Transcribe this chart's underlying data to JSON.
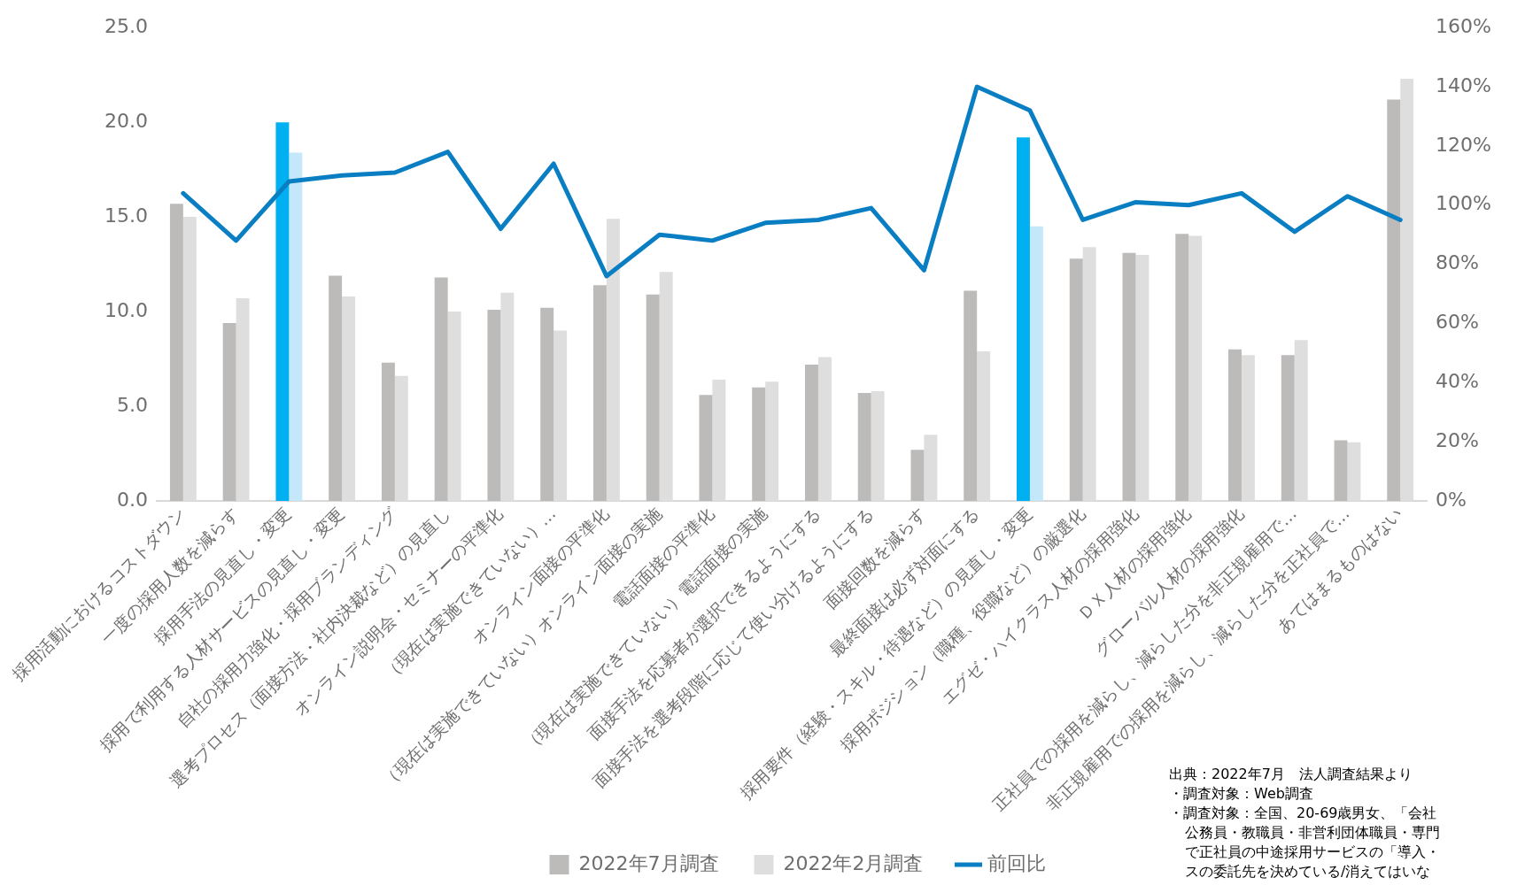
{
  "chart_data": {
    "type": "bar",
    "categories": [
      "採用活動におけるコストダウン",
      "一度の採用人数を減らす",
      "採用手法の見直し・変更",
      "採用で利用する人材サービスの見直し・変更",
      "自社の採用力強化・採用ブランディング",
      "選考プロセス（面接方法・社内決裁など）の見直し",
      "オンライン説明会・セミナーの平準化",
      "（現在は実施できていない）…",
      "オンライン面接の平準化",
      "（現在は実施できていない）オンライン面接の実施",
      "電話面接の平準化",
      "（現在は実施できていない）電話面接の実施",
      "面接手法を応募者が選択できるようにする",
      "面接手法を選考段階に応じて使い分けるようにする",
      "面接回数を減らす",
      "最終面接は必ず対面にする",
      "採用要件（経験・スキル・待遇など）の見直し・変更",
      "採用ポジション（職種、役職など）の厳選化",
      "エグゼ・ハイクラス人材の採用強化",
      "ＤＸ人材の採用強化",
      "グローバル人材の採用強化",
      "正社員での採用を減らし、減らした分を非正規雇用で…",
      "非正規雇用での採用を減らし、減らした分を正社員で…",
      "あてはまるものはない"
    ],
    "series": [
      {
        "name": "2022年7月調査",
        "color": "#bcbbba",
        "colors": [
          "#bcbbba",
          "#bcbbba",
          "#00b0f0",
          "#bcbbba",
          "#bcbbba",
          "#bcbbba",
          "#bcbbba",
          "#bcbbba",
          "#bcbbba",
          "#bcbbba",
          "#bcbbba",
          "#bcbbba",
          "#bcbbba",
          "#bcbbba",
          "#bcbbba",
          "#bcbbba",
          "#00b0f0",
          "#bcbbba",
          "#bcbbba",
          "#bcbbba",
          "#bcbbba",
          "#bcbbba",
          "#bcbbba",
          "#bcbbba"
        ],
        "values": [
          15.7,
          9.4,
          20.0,
          11.9,
          7.3,
          11.8,
          10.1,
          10.2,
          11.4,
          10.9,
          5.6,
          6.0,
          7.2,
          5.7,
          2.7,
          11.1,
          19.2,
          12.8,
          13.1,
          14.1,
          8.0,
          7.7,
          3.2,
          21.2
        ]
      },
      {
        "name": "2022年2月調査",
        "color": "#dedede",
        "colors": [
          "#dedede",
          "#dedede",
          "#c4e8fa",
          "#dedede",
          "#dedede",
          "#dedede",
          "#dedede",
          "#dedede",
          "#dedede",
          "#dedede",
          "#dedede",
          "#dedede",
          "#dedede",
          "#dedede",
          "#dedede",
          "#dedede",
          "#c4e8fa",
          "#dedede",
          "#dedede",
          "#dedede",
          "#dedede",
          "#dedede",
          "#dedede",
          "#dedede"
        ],
        "values": [
          15.0,
          10.7,
          18.4,
          10.8,
          6.6,
          10.0,
          11.0,
          9.0,
          14.9,
          12.1,
          6.4,
          6.3,
          7.6,
          5.8,
          3.5,
          7.9,
          14.5,
          13.4,
          13.0,
          14.0,
          7.7,
          8.5,
          3.1,
          22.3
        ]
      },
      {
        "name": "前回比",
        "type": "line",
        "axis": "y2",
        "color": "#0a7ec2",
        "values": [
          104,
          88,
          108,
          110,
          111,
          118,
          92,
          114,
          76,
          90,
          88,
          94,
          95,
          99,
          78,
          140,
          132,
          95,
          101,
          100,
          104,
          91,
          103,
          95
        ]
      }
    ],
    "ylim": [
      0,
      25
    ],
    "yticks": [
      {
        "value": 0,
        "label": "0.0"
      },
      {
        "value": 5,
        "label": "5.0"
      },
      {
        "value": 10,
        "label": "10.0"
      },
      {
        "value": 15,
        "label": "15.0"
      },
      {
        "value": 20,
        "label": "20.0"
      },
      {
        "value": 25,
        "label": "25.0"
      }
    ],
    "y2lim": [
      0,
      160
    ],
    "y2ticks": [
      {
        "value": 0,
        "label": "0%"
      },
      {
        "value": 20,
        "label": "20%"
      },
      {
        "value": 40,
        "label": "40%"
      },
      {
        "value": 60,
        "label": "60%"
      },
      {
        "value": 80,
        "label": "80%"
      },
      {
        "value": 100,
        "label": "100%"
      },
      {
        "value": 120,
        "label": "120%"
      },
      {
        "value": 140,
        "label": "140%"
      },
      {
        "value": 160,
        "label": "160%"
      }
    ],
    "grid": false,
    "legend": "bottom",
    "marker": "none",
    "line_style": "solid",
    "annotations": [
      "出典：2022年7月　法人調査結果より",
      "・調査対象：Web調査",
      "・調査対象：全国、20-69歳男女、「会社",
      "公務員・教職員・非営利団体職員・専門",
      "で正社員の中途採用サービスの「導入・",
      "スの委託先を決めている/消えてはいな"
    ]
  }
}
